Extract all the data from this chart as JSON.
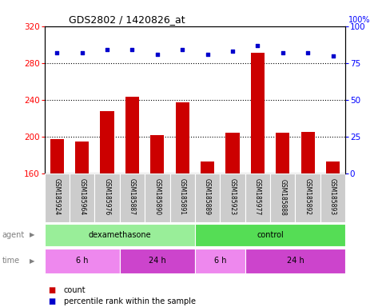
{
  "title": "GDS2802 / 1420826_at",
  "samples": [
    "GSM185924",
    "GSM185964",
    "GSM185976",
    "GSM185887",
    "GSM185890",
    "GSM185891",
    "GSM185889",
    "GSM185923",
    "GSM185977",
    "GSM185888",
    "GSM185892",
    "GSM185893"
  ],
  "counts": [
    197,
    195,
    228,
    243,
    202,
    237,
    173,
    204,
    291,
    204,
    205,
    173
  ],
  "percentile_ranks": [
    82,
    82,
    84,
    84,
    81,
    84,
    81,
    83,
    87,
    82,
    82,
    80
  ],
  "ylim_left": [
    160,
    320
  ],
  "yticks_left": [
    160,
    200,
    240,
    280,
    320
  ],
  "ylim_right": [
    0,
    100
  ],
  "yticks_right": [
    0,
    25,
    50,
    75,
    100
  ],
  "bar_color": "#cc0000",
  "dot_color": "#0000cc",
  "agent_groups": [
    {
      "label": "dexamethasone",
      "start": 0,
      "end": 6,
      "color": "#99ee99"
    },
    {
      "label": "control",
      "start": 6,
      "end": 12,
      "color": "#55dd55"
    }
  ],
  "time_groups": [
    {
      "label": "6 h",
      "start": 0,
      "end": 3,
      "color": "#ee88ee"
    },
    {
      "label": "24 h",
      "start": 3,
      "end": 6,
      "color": "#cc44cc"
    },
    {
      "label": "6 h",
      "start": 6,
      "end": 8,
      "color": "#ee88ee"
    },
    {
      "label": "24 h",
      "start": 8,
      "end": 12,
      "color": "#cc44cc"
    }
  ],
  "legend_count_color": "#cc0000",
  "legend_dot_color": "#0000cc",
  "label_bg_color": "#cccccc",
  "hline_vals": [
    280,
    240,
    200
  ],
  "dot_size": 12
}
